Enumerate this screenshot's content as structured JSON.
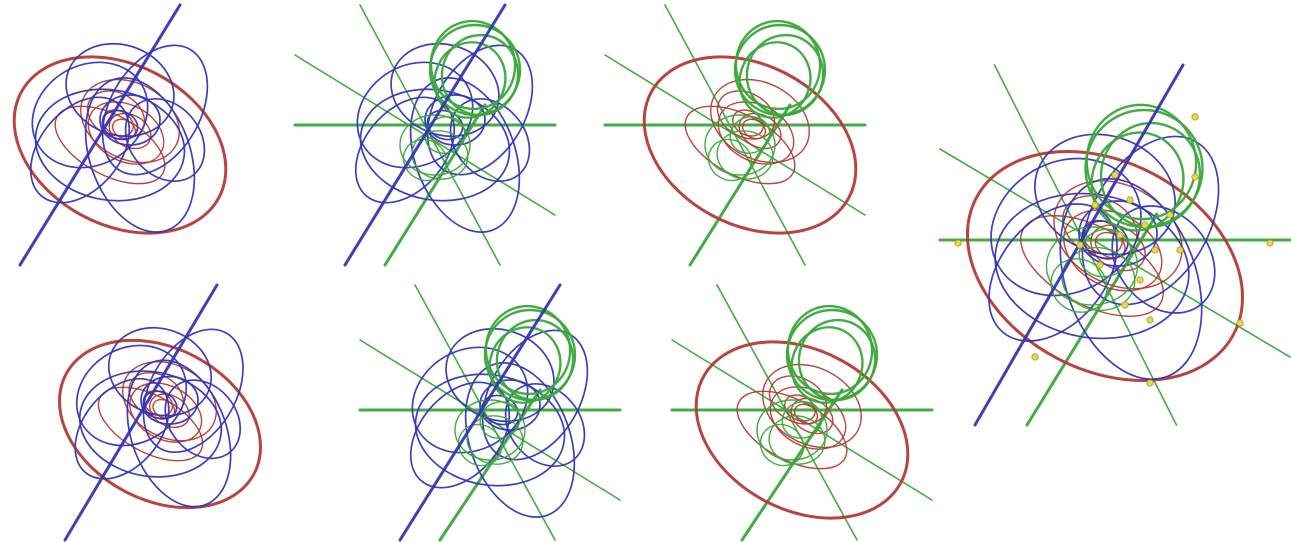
{
  "colors": {
    "red": "#b53a35",
    "blue": "#3535b5",
    "green": "#3aa83a",
    "node": "#e8d84a",
    "background": "#ffffff"
  },
  "panels": [
    {
      "id": "red-blue-top",
      "families": [
        "red",
        "blue"
      ],
      "axes": [
        "blue"
      ],
      "nodes": false
    },
    {
      "id": "blue-green-top",
      "families": [
        "blue",
        "green"
      ],
      "axes": [
        "blue",
        "green"
      ],
      "nodes": false
    },
    {
      "id": "red-green-top",
      "families": [
        "red",
        "green"
      ],
      "axes": [
        "green"
      ],
      "nodes": false
    },
    {
      "id": "red-blue-bottom",
      "families": [
        "red",
        "blue"
      ],
      "axes": [
        "blue"
      ],
      "nodes": false
    },
    {
      "id": "blue-green-bottom",
      "families": [
        "blue",
        "green"
      ],
      "axes": [
        "blue",
        "green"
      ],
      "nodes": false
    },
    {
      "id": "red-green-bottom",
      "families": [
        "red",
        "green"
      ],
      "axes": [
        "green"
      ],
      "nodes": false
    },
    {
      "id": "combined",
      "families": [
        "red",
        "blue",
        "green"
      ],
      "axes": [
        "blue",
        "green"
      ],
      "nodes": true
    }
  ]
}
